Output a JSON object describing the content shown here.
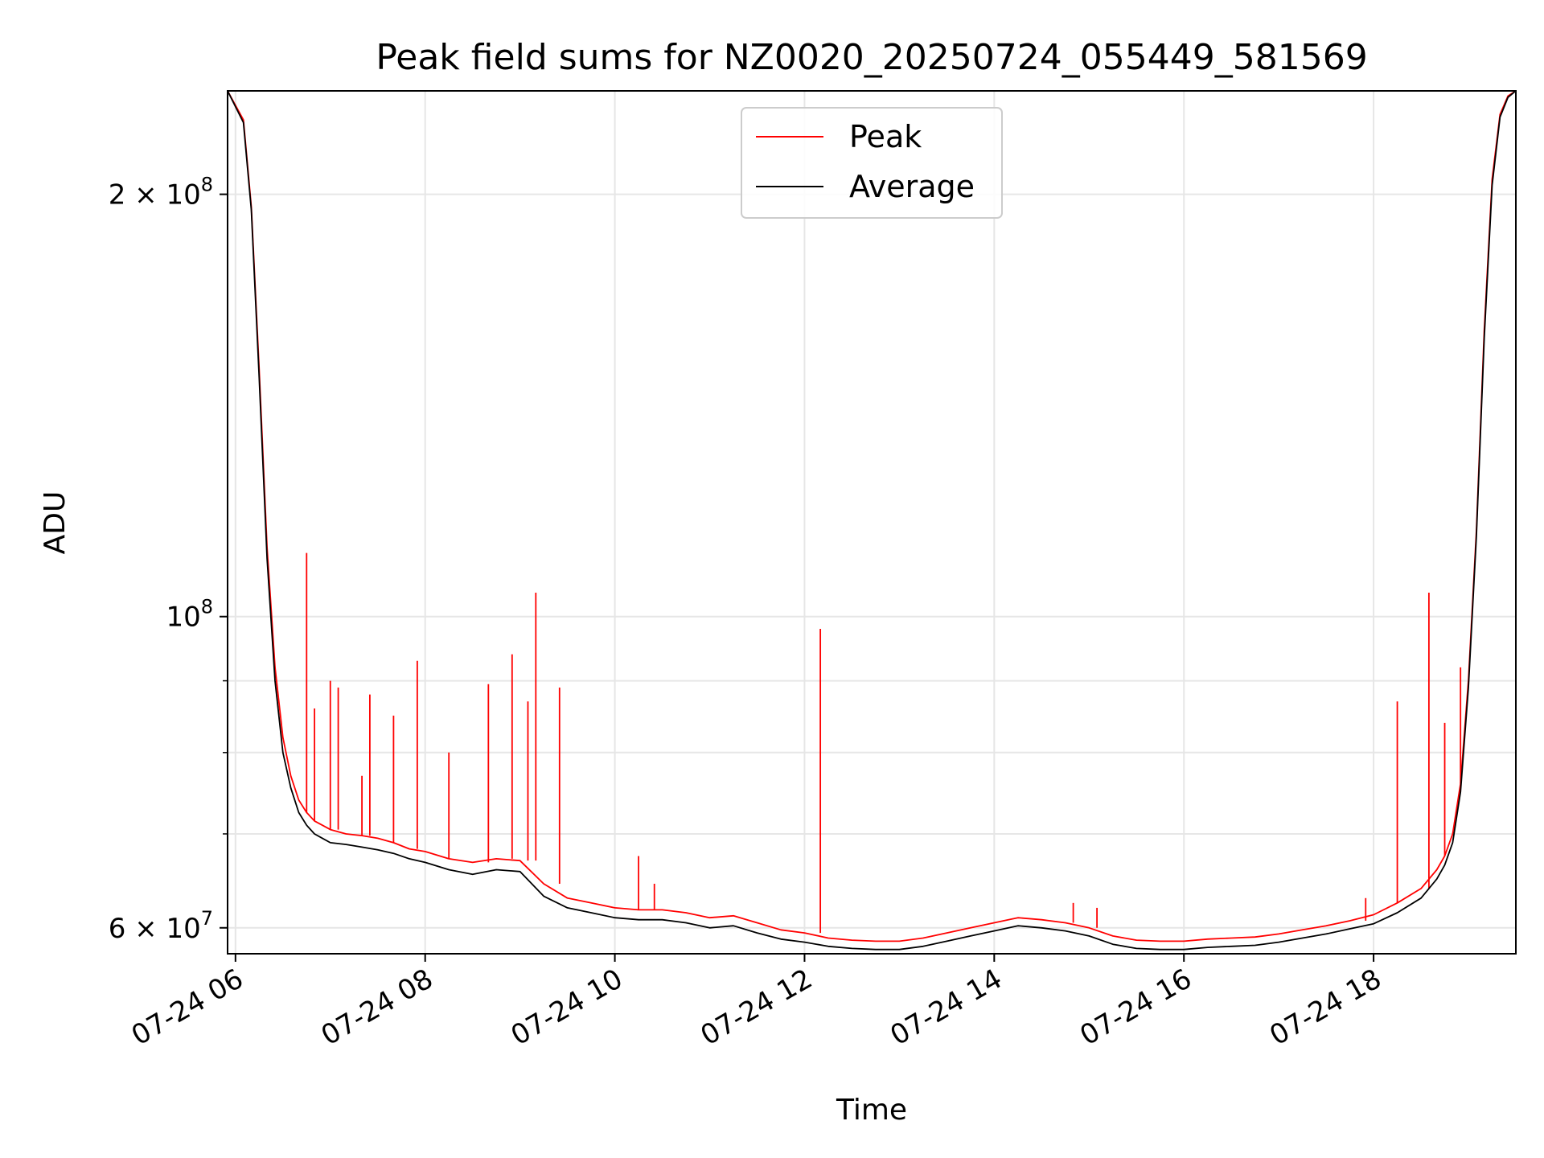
{
  "chart_data": {
    "type": "line",
    "title": "Peak field sums for NZ0020_20250724_055449_581569",
    "xlabel": "Time",
    "ylabel": "ADU",
    "yscale": "log",
    "xlim": [
      "2025-07-24 05:55",
      "2025-07-24 19:30"
    ],
    "ylim": [
      57500000,
      237000000
    ],
    "x_ticks": [
      {
        "value": "2025-07-24 06:00",
        "label": "07-24 06"
      },
      {
        "value": "2025-07-24 08:00",
        "label": "07-24 08"
      },
      {
        "value": "2025-07-24 10:00",
        "label": "07-24 10"
      },
      {
        "value": "2025-07-24 12:00",
        "label": "07-24 12"
      },
      {
        "value": "2025-07-24 14:00",
        "label": "07-24 14"
      },
      {
        "value": "2025-07-24 16:00",
        "label": "07-24 16"
      },
      {
        "value": "2025-07-24 18:00",
        "label": "07-24 18"
      }
    ],
    "y_ticks": [
      {
        "value": 60000000,
        "base": "6 × 10",
        "exp": "7"
      },
      {
        "value": 100000000,
        "base": "10",
        "exp": "8"
      },
      {
        "value": 200000000,
        "base": "2 × 10",
        "exp": "8"
      }
    ],
    "y_minor_ticks": [
      70000000,
      80000000,
      90000000
    ],
    "grid": true,
    "legend_position": "upper-center",
    "series": [
      {
        "name": "Peak",
        "color": "#ff0000",
        "x": [
          "05:55",
          "06:05",
          "06:10",
          "06:15",
          "06:20",
          "06:25",
          "06:30",
          "06:35",
          "06:40",
          "06:45",
          "06:50",
          "06:55",
          "07:00",
          "07:10",
          "07:20",
          "07:30",
          "07:40",
          "07:50",
          "08:00",
          "08:15",
          "08:30",
          "08:45",
          "09:00",
          "09:15",
          "09:30",
          "09:45",
          "10:00",
          "10:15",
          "10:30",
          "10:45",
          "11:00",
          "11:15",
          "11:30",
          "11:45",
          "12:00",
          "12:15",
          "12:30",
          "12:45",
          "13:00",
          "13:15",
          "13:30",
          "13:45",
          "14:00",
          "14:15",
          "14:30",
          "14:45",
          "15:00",
          "15:15",
          "15:30",
          "15:45",
          "16:00",
          "16:15",
          "16:30",
          "16:45",
          "17:00",
          "17:15",
          "17:30",
          "17:45",
          "18:00",
          "18:15",
          "18:30",
          "18:40",
          "18:45",
          "18:50",
          "18:55",
          "19:00",
          "19:05",
          "19:10",
          "19:15",
          "19:20",
          "19:25",
          "19:30"
        ],
        "y": [
          237000000,
          226000000,
          196000000,
          150000000,
          112000000,
          92000000,
          82000000,
          77000000,
          74000000,
          72500000,
          71500000,
          71000000,
          70500000,
          70000000,
          69800000,
          69500000,
          69000000,
          68300000,
          68000000,
          67200000,
          66800000,
          67200000,
          67000000,
          64500000,
          63000000,
          62500000,
          62000000,
          61800000,
          61800000,
          61500000,
          61000000,
          61200000,
          60500000,
          59800000,
          59500000,
          59000000,
          58800000,
          58700000,
          58700000,
          59000000,
          59500000,
          60000000,
          60500000,
          61000000,
          60800000,
          60500000,
          60000000,
          59200000,
          58800000,
          58700000,
          58700000,
          58900000,
          59000000,
          59100000,
          59400000,
          59800000,
          60200000,
          60700000,
          61300000,
          62500000,
          64000000,
          66000000,
          67500000,
          70000000,
          76000000,
          90000000,
          115000000,
          160000000,
          205000000,
          228000000,
          235000000,
          237000000
        ],
        "spikes": [
          {
            "x": "06:45",
            "y": 111000000
          },
          {
            "x": "06:50",
            "y": 86000000
          },
          {
            "x": "07:00",
            "y": 90000000
          },
          {
            "x": "07:05",
            "y": 89000000
          },
          {
            "x": "07:20",
            "y": 77000000
          },
          {
            "x": "07:25",
            "y": 88000000
          },
          {
            "x": "07:40",
            "y": 85000000
          },
          {
            "x": "07:55",
            "y": 93000000
          },
          {
            "x": "08:15",
            "y": 80000000
          },
          {
            "x": "08:40",
            "y": 89500000
          },
          {
            "x": "08:55",
            "y": 94000000
          },
          {
            "x": "09:05",
            "y": 87000000
          },
          {
            "x": "09:10",
            "y": 104000000
          },
          {
            "x": "09:25",
            "y": 89000000
          },
          {
            "x": "10:15",
            "y": 67500000
          },
          {
            "x": "10:25",
            "y": 64500000
          },
          {
            "x": "12:10",
            "y": 98000000
          },
          {
            "x": "14:50",
            "y": 62500000
          },
          {
            "x": "15:05",
            "y": 62000000
          },
          {
            "x": "17:55",
            "y": 63000000
          },
          {
            "x": "18:15",
            "y": 87000000
          },
          {
            "x": "18:35",
            "y": 104000000
          },
          {
            "x": "18:45",
            "y": 84000000
          },
          {
            "x": "18:55",
            "y": 92000000
          }
        ]
      },
      {
        "name": "Average",
        "color": "#000000",
        "x": [
          "05:55",
          "06:05",
          "06:10",
          "06:15",
          "06:20",
          "06:25",
          "06:30",
          "06:35",
          "06:40",
          "06:45",
          "06:50",
          "06:55",
          "07:00",
          "07:10",
          "07:20",
          "07:30",
          "07:40",
          "07:50",
          "08:00",
          "08:15",
          "08:30",
          "08:45",
          "09:00",
          "09:15",
          "09:30",
          "09:45",
          "10:00",
          "10:15",
          "10:30",
          "10:45",
          "11:00",
          "11:15",
          "11:30",
          "11:45",
          "12:00",
          "12:15",
          "12:30",
          "12:45",
          "13:00",
          "13:15",
          "13:30",
          "13:45",
          "14:00",
          "14:15",
          "14:30",
          "14:45",
          "15:00",
          "15:15",
          "15:30",
          "15:45",
          "16:00",
          "16:15",
          "16:30",
          "16:45",
          "17:00",
          "17:15",
          "17:30",
          "17:45",
          "18:00",
          "18:15",
          "18:30",
          "18:40",
          "18:45",
          "18:50",
          "18:55",
          "19:00",
          "19:05",
          "19:10",
          "19:15",
          "19:20",
          "19:25",
          "19:30"
        ],
        "y": [
          237000000,
          225000000,
          195000000,
          148000000,
          110000000,
          90000000,
          80000000,
          75500000,
          72500000,
          71000000,
          70000000,
          69500000,
          69000000,
          68800000,
          68500000,
          68200000,
          67800000,
          67200000,
          66800000,
          66000000,
          65500000,
          66000000,
          65800000,
          63200000,
          62000000,
          61500000,
          61000000,
          60800000,
          60800000,
          60500000,
          60000000,
          60200000,
          59500000,
          58900000,
          58600000,
          58200000,
          58000000,
          57900000,
          57900000,
          58200000,
          58700000,
          59200000,
          59700000,
          60200000,
          60000000,
          59700000,
          59200000,
          58400000,
          58000000,
          57900000,
          57900000,
          58100000,
          58200000,
          58300000,
          58600000,
          59000000,
          59400000,
          59900000,
          60400000,
          61500000,
          63000000,
          65000000,
          66500000,
          69000000,
          75000000,
          89000000,
          114000000,
          158000000,
          203000000,
          227000000,
          234500000,
          237000000
        ]
      }
    ]
  }
}
